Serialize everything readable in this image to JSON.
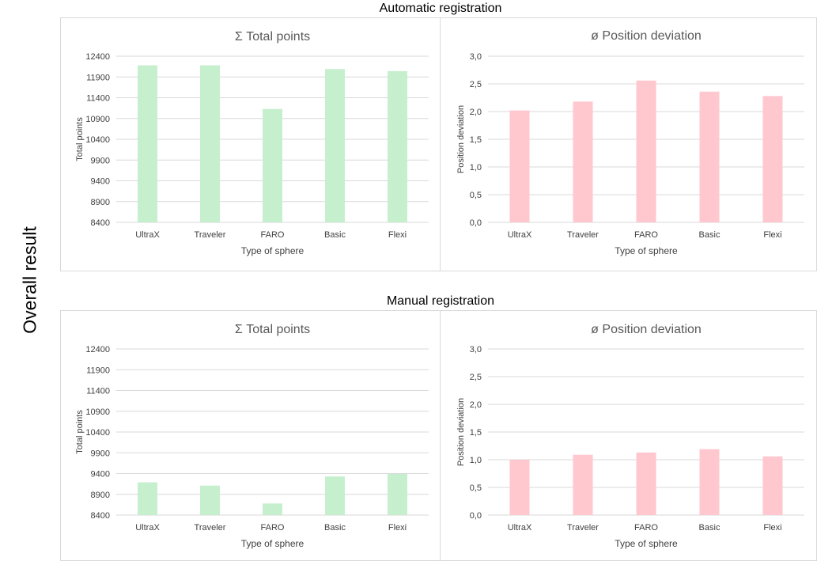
{
  "side_label": "Overall result",
  "sections": {
    "auto": {
      "title": "Automatic registration"
    },
    "manual": {
      "title": "Manual registration"
    }
  },
  "colors": {
    "points_bar": "#c6efce",
    "deviation_bar": "#ffc7ce",
    "grid": "#d9d9d9",
    "tick_text": "#404040"
  },
  "chart_data": [
    {
      "id": "auto_points",
      "type": "bar",
      "title": "Σ Total points",
      "xlabel": "Type of sphere",
      "ylabel": "Total points",
      "categories": [
        "UltraX",
        "Traveler",
        "FARO",
        "Basic",
        "Flexi"
      ],
      "values": [
        12180,
        12180,
        11130,
        12090,
        12040
      ],
      "ylim": [
        8400,
        12400
      ],
      "yticks": [
        "8400",
        "8900",
        "9400",
        "9900",
        "10400",
        "10900",
        "11400",
        "11900",
        "12400"
      ]
    },
    {
      "id": "auto_deviation",
      "type": "bar",
      "title": "ø Position deviation",
      "xlabel": "Type of sphere",
      "ylabel": "Position deviation",
      "categories": [
        "UltraX",
        "Traveler",
        "FARO",
        "Basic",
        "Flexi"
      ],
      "values": [
        2.02,
        2.18,
        2.56,
        2.36,
        2.28
      ],
      "ylim": [
        0,
        3
      ],
      "yticks": [
        "0,0",
        "0,5",
        "1,0",
        "1,5",
        "2,0",
        "2,5",
        "3,0"
      ]
    },
    {
      "id": "manual_points",
      "type": "bar",
      "title": "Σ Total points",
      "xlabel": "Type of sphere",
      "ylabel": "Total points",
      "categories": [
        "UltraX",
        "Traveler",
        "FARO",
        "Basic",
        "Flexi"
      ],
      "values": [
        9190,
        9110,
        8680,
        9330,
        9390
      ],
      "ylim": [
        8400,
        12400
      ],
      "yticks": [
        "8400",
        "8900",
        "9400",
        "9900",
        "10400",
        "10900",
        "11400",
        "11900",
        "12400"
      ]
    },
    {
      "id": "manual_deviation",
      "type": "bar",
      "title": "ø Position deviation",
      "xlabel": "Type of sphere",
      "ylabel": "Position deviation",
      "categories": [
        "UltraX",
        "Traveler",
        "FARO",
        "Basic",
        "Flexi"
      ],
      "values": [
        1.0,
        1.09,
        1.13,
        1.19,
        1.06
      ],
      "ylim": [
        0,
        3
      ],
      "yticks": [
        "0,0",
        "0,5",
        "1,0",
        "1,5",
        "2,0",
        "2,5",
        "3,0"
      ]
    }
  ]
}
